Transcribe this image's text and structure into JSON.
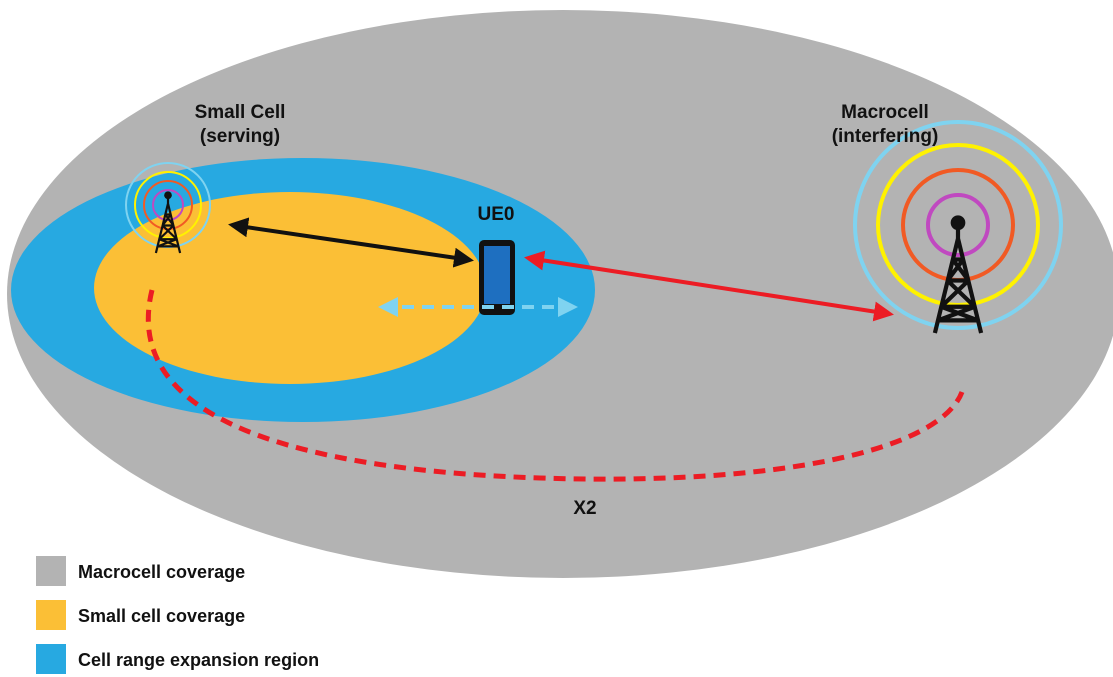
{
  "nodes": [
    {
      "label": "Small Cell",
      "sublabel": "(serving)"
    },
    {
      "label": "Macrocell",
      "sublabel": "(interfering)"
    },
    {
      "label": "UE0"
    }
  ],
  "link_label": "X2",
  "legend": [
    {
      "label": "Macrocell coverage",
      "color": "#b3b3b3"
    },
    {
      "label": "Small cell coverage",
      "color": "#fbbf36"
    },
    {
      "label": "Cell range expansion region",
      "color": "#27a9e1"
    }
  ]
}
